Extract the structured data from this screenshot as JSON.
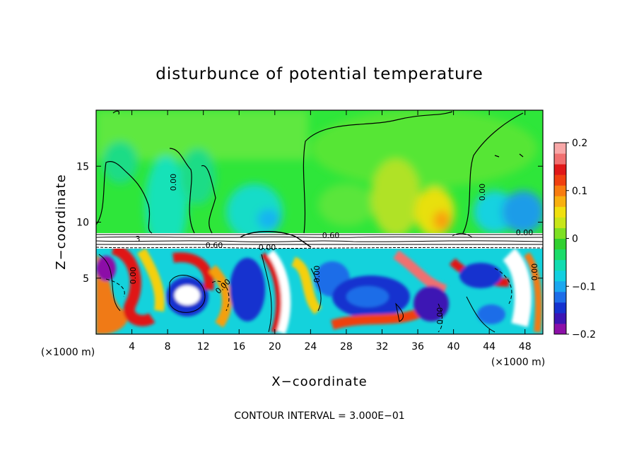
{
  "chart_data": {
    "type": "heatmap",
    "title": "disturbunce of potential temperature",
    "xlabel": "X−coordinate",
    "ylabel": "Z−coordinate",
    "x_unit": "(×1000 m)",
    "x_unit_right": "(×1000 m)",
    "xlim": [
      0,
      50
    ],
    "ylim": [
      0,
      20
    ],
    "x_ticks": [
      4,
      8,
      12,
      16,
      20,
      24,
      28,
      32,
      36,
      40,
      44,
      48
    ],
    "x_tick_labels": [
      "4",
      "8",
      "12",
      "16",
      "20",
      "24",
      "28",
      "32",
      "36",
      "40",
      "44",
      "48"
    ],
    "y_ticks": [
      5,
      10,
      15
    ],
    "y_tick_labels": [
      "5",
      "10",
      "15"
    ],
    "colorbar": {
      "range": [
        -0.2,
        0.2
      ],
      "tick_values": [
        0.2,
        0.1,
        0,
        -0.1,
        -0.2
      ],
      "tick_labels": [
        "0.2",
        "0.1",
        "0",
        "−0.1",
        "−0.2"
      ],
      "colors": [
        "#8c0fa8",
        "#3c15b4",
        "#1532cf",
        "#1e6de8",
        "#1ba8f0",
        "#12d0e0",
        "#11dcb0",
        "#1bdc6a",
        "#30d030",
        "#7ee024",
        "#c8e61a",
        "#f0e010",
        "#f8b010",
        "#f87c10",
        "#f04010",
        "#e01818",
        "#f07070",
        "#f8a8a8"
      ]
    },
    "contour_labels": [
      "0.00",
      "0.00",
      "0.00",
      "0.00",
      "0.00",
      "0.60",
      "0.60",
      "0.00",
      "0.00",
      "0.00",
      "0.00",
      "3"
    ],
    "contour_interval_text": "CONTOUR INTERVAL = 3.000E−01"
  }
}
